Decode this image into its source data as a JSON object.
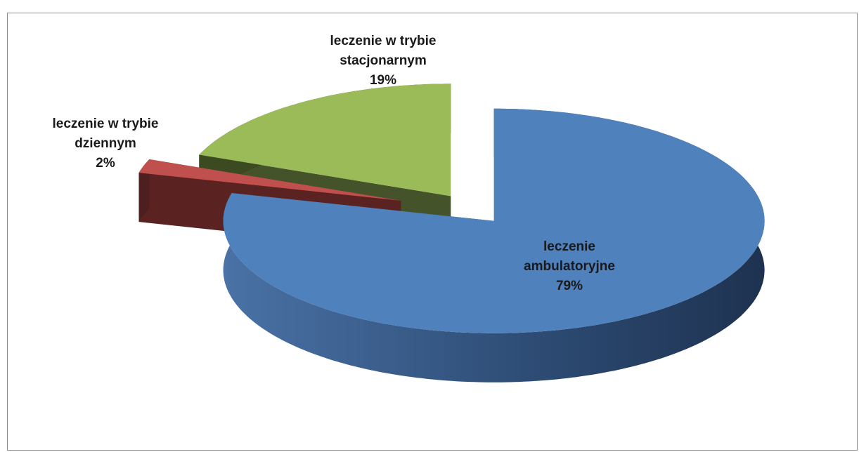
{
  "chart_data": {
    "type": "pie3d",
    "categories": [
      "leczenie ambulatoryjne",
      "leczenie w trybie dziennym",
      "leczenie w trybie stacjonarnym"
    ],
    "values": [
      79,
      2,
      19
    ],
    "value_labels": [
      "79%",
      "2%",
      "19%"
    ],
    "colors": [
      "#4f81bd",
      "#c0504d",
      "#9bbb59"
    ]
  }
}
